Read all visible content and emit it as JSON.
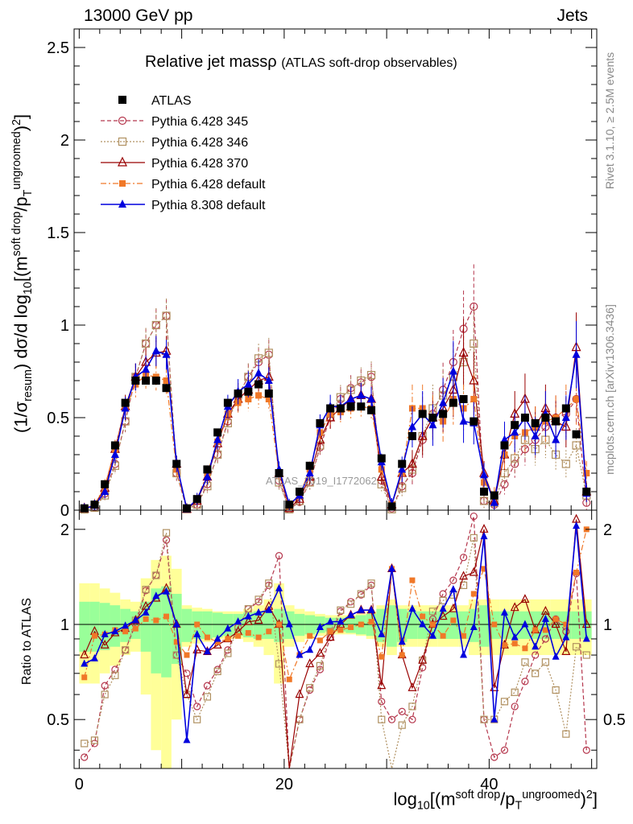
{
  "header": {
    "left": "13000 GeV pp",
    "right": "Jets"
  },
  "title": {
    "main": "Relative jet massρ",
    "sub": "(ATLAS soft-drop observables)"
  },
  "side_text": {
    "rivet": "Rivet 3.1.10, ≥ 2.5M events",
    "mcplots": "mcplots.cern.ch [arXiv:1306.3436]"
  },
  "watermark": "ATLAS_2019_I1772062",
  "labels": {
    "ylabel_main": "(1/σresum) dσ/d log10[(msoft drop/pTungroomed)2]",
    "ylabel_ratio": "Ratio to ATLAS",
    "xlabel": "log10[(msoft drop/pTungroomed)2]"
  },
  "colors": {
    "data": "#000000",
    "p345": "#b5374d",
    "p346": "#b09060",
    "p370": "#990000",
    "pdef": "#f07828",
    "p8": "#0000dd",
    "band_outer": "#ffff99",
    "band_inner": "#99ff99"
  },
  "chart_data": {
    "type": "scatter",
    "xlabel": "log10[(msoft drop/pTungroomed)2]",
    "ylabel": "(1/σresum) dσ/d log10[(msoft drop/pTungroomed)2]",
    "ylabel_ratio": "Ratio to ATLAS",
    "xlim": [
      -0.5,
      50.5
    ],
    "ylim": [
      0,
      2.6
    ],
    "ylim_ratio": [
      0.35,
      2.3
    ],
    "xticks": [
      0,
      20,
      40
    ],
    "yticks": [
      0,
      0.5,
      1,
      1.5,
      2,
      2.5
    ],
    "yticks_ratio": [
      0.5,
      1,
      2
    ],
    "legend_position": "top-left",
    "x": [
      0.5,
      1.5,
      2.5,
      3.5,
      4.5,
      5.5,
      6.5,
      7.5,
      8.5,
      9.5,
      10.5,
      11.5,
      12.5,
      13.5,
      14.5,
      15.5,
      16.5,
      17.5,
      18.5,
      19.5,
      20.5,
      21.5,
      22.5,
      23.5,
      24.5,
      25.5,
      26.5,
      27.5,
      28.5,
      29.5,
      30.5,
      31.5,
      32.5,
      33.5,
      34.5,
      35.5,
      36.5,
      37.5,
      38.5,
      39.5,
      40.5,
      41.5,
      42.5,
      43.5,
      44.5,
      45.5,
      46.5,
      47.5,
      48.5,
      49.5
    ],
    "series": [
      {
        "name": "ATLAS",
        "marker": "square",
        "values": [
          0.01,
          0.03,
          0.14,
          0.35,
          0.58,
          0.7,
          0.7,
          0.7,
          0.66,
          0.25,
          0.01,
          0.06,
          0.22,
          0.42,
          0.58,
          0.63,
          0.64,
          0.68,
          0.63,
          0.2,
          0.03,
          0.1,
          0.24,
          0.47,
          0.55,
          0.55,
          0.56,
          0.56,
          0.54,
          0.28,
          0.02,
          0.25,
          0.4,
          0.52,
          0.5,
          0.52,
          0.58,
          0.6,
          0.48,
          0.1,
          0.08,
          0.35,
          0.46,
          0.5,
          0.47,
          0.5,
          0.48,
          0.55,
          0.41,
          0.1
        ],
        "ratio": [
          1,
          1,
          1,
          1,
          1,
          1,
          1,
          1,
          1,
          1,
          1,
          1,
          1,
          1,
          1,
          1,
          1,
          1,
          1,
          1,
          1,
          1,
          1,
          1,
          1,
          1,
          1,
          1,
          1,
          1,
          1,
          1,
          1,
          1,
          1,
          1,
          1,
          1,
          1,
          1,
          1,
          1,
          1,
          1,
          1,
          1,
          1,
          1,
          1,
          1
        ]
      },
      {
        "name": "Pythia 6.428 345",
        "marker": "open-circle",
        "values": [
          0.004,
          0.015,
          0.09,
          0.25,
          0.48,
          0.72,
          0.9,
          1.0,
          1.05,
          0.2,
          0.007,
          0.03,
          0.14,
          0.3,
          0.48,
          0.62,
          0.72,
          0.8,
          0.84,
          0.16,
          0.005,
          0.045,
          0.15,
          0.34,
          0.5,
          0.6,
          0.66,
          0.69,
          0.72,
          0.16,
          0.01,
          0.13,
          0.2,
          0.38,
          0.52,
          0.65,
          0.8,
          0.98,
          1.1,
          0.05,
          0.03,
          0.14,
          0.25,
          0.33,
          0.38,
          0.45,
          0.5,
          0.52,
          0.6,
          0.04
        ],
        "ratio": [
          0.38,
          0.42,
          0.64,
          0.72,
          0.83,
          1.0,
          1.28,
          1.43,
          1.85,
          0.8,
          0.7,
          0.55,
          0.64,
          0.72,
          0.83,
          0.98,
          1.12,
          1.18,
          1.33,
          1.65,
          0.17,
          0.5,
          0.62,
          0.72,
          0.91,
          1.1,
          1.18,
          1.24,
          1.33,
          0.57,
          0.5,
          0.53,
          0.5,
          0.73,
          1.04,
          1.25,
          1.38,
          1.63,
          2.2,
          0.5,
          0.38,
          0.4,
          0.55,
          0.66,
          0.8,
          0.9,
          1.04,
          0.95,
          1.45,
          0.4
        ]
      },
      {
        "name": "Pythia 6.428 346",
        "marker": "open-square",
        "values": [
          0.004,
          0.013,
          0.08,
          0.24,
          0.48,
          0.72,
          0.9,
          1.0,
          1.05,
          0.2,
          0.006,
          0.03,
          0.13,
          0.3,
          0.47,
          0.62,
          0.72,
          0.82,
          0.85,
          0.15,
          0.005,
          0.05,
          0.15,
          0.35,
          0.52,
          0.61,
          0.65,
          0.7,
          0.73,
          0.14,
          0.005,
          0.12,
          0.22,
          0.4,
          0.55,
          0.62,
          0.72,
          0.8,
          0.9,
          0.05,
          0.04,
          0.2,
          0.28,
          0.38,
          0.33,
          0.38,
          0.3,
          0.25,
          0.35,
          0.08
        ],
        "ratio": [
          0.42,
          0.43,
          0.6,
          0.69,
          0.83,
          1.03,
          1.29,
          1.43,
          1.95,
          0.8,
          0.6,
          0.5,
          0.59,
          0.71,
          0.81,
          0.98,
          1.12,
          1.2,
          1.35,
          0.75,
          0.25,
          0.5,
          0.63,
          0.74,
          0.95,
          1.11,
          1.16,
          1.25,
          1.35,
          0.5,
          0.25,
          0.48,
          0.55,
          0.77,
          1.1,
          1.19,
          1.24,
          1.33,
          1.88,
          0.5,
          0.5,
          0.57,
          0.61,
          0.76,
          0.7,
          0.76,
          0.62,
          0.45,
          0.85,
          0.8
        ]
      },
      {
        "name": "Pythia 6.428 370",
        "marker": "open-triangle",
        "values": [
          0.008,
          0.028,
          0.12,
          0.33,
          0.56,
          0.72,
          0.8,
          0.85,
          0.86,
          0.25,
          0.006,
          0.05,
          0.18,
          0.36,
          0.52,
          0.6,
          0.65,
          0.7,
          0.72,
          0.2,
          0.01,
          0.06,
          0.18,
          0.38,
          0.5,
          0.55,
          0.6,
          0.62,
          0.6,
          0.18,
          0.03,
          0.2,
          0.25,
          0.4,
          0.5,
          0.55,
          0.65,
          0.85,
          0.7,
          0.2,
          0.05,
          0.3,
          0.52,
          0.6,
          0.45,
          0.55,
          0.48,
          0.45,
          0.88,
          0.1
        ],
        "ratio": [
          0.8,
          0.95,
          0.86,
          0.94,
          0.97,
          1.03,
          1.14,
          1.21,
          1.3,
          1.0,
          0.6,
          0.83,
          0.82,
          0.86,
          0.9,
          0.95,
          1.02,
          1.03,
          1.14,
          1.0,
          0.33,
          0.6,
          0.75,
          0.81,
          0.91,
          1.0,
          1.07,
          1.11,
          1.11,
          0.64,
          1.5,
          0.8,
          0.63,
          0.77,
          1.0,
          1.06,
          1.12,
          1.42,
          1.46,
          2.0,
          0.63,
          0.86,
          1.13,
          1.2,
          0.96,
          1.1,
          1.0,
          0.82,
          2.15,
          1.0
        ]
      },
      {
        "name": "Pythia 6.428 default",
        "marker": "filled-square",
        "values": [
          0.01,
          0.03,
          0.13,
          0.33,
          0.55,
          0.68,
          0.73,
          0.72,
          0.7,
          0.22,
          0.008,
          0.06,
          0.2,
          0.37,
          0.52,
          0.58,
          0.6,
          0.62,
          0.6,
          0.2,
          0.02,
          0.08,
          0.22,
          0.42,
          0.52,
          0.53,
          0.55,
          0.56,
          0.55,
          0.22,
          0.03,
          0.2,
          0.55,
          0.55,
          0.5,
          0.48,
          0.6,
          0.55,
          0.6,
          0.15,
          0.08,
          0.3,
          0.4,
          0.42,
          0.45,
          0.48,
          0.5,
          0.55,
          0.6,
          0.2
        ],
        "ratio": [
          0.68,
          0.92,
          0.93,
          0.96,
          0.95,
          0.97,
          1.04,
          1.03,
          1.06,
          0.88,
          0.8,
          1.0,
          0.91,
          0.88,
          0.9,
          0.92,
          0.94,
          0.91,
          0.95,
          1.0,
          0.67,
          0.8,
          0.92,
          0.89,
          0.95,
          0.96,
          0.98,
          1.0,
          1.02,
          0.79,
          1.5,
          0.8,
          1.38,
          1.06,
          1.0,
          0.92,
          1.03,
          0.92,
          1.25,
          1.5,
          1.0,
          0.86,
          0.87,
          0.84,
          0.96,
          0.96,
          1.04,
          1.0,
          1.46,
          2.0
        ]
      },
      {
        "name": "Pythia 8.308 default",
        "marker": "filled-triangle",
        "values": [
          0.008,
          0.025,
          0.1,
          0.3,
          0.55,
          0.72,
          0.76,
          0.86,
          0.84,
          0.25,
          0.005,
          0.06,
          0.18,
          0.38,
          0.56,
          0.64,
          0.68,
          0.74,
          0.7,
          0.22,
          0.03,
          0.08,
          0.2,
          0.46,
          0.56,
          0.56,
          0.6,
          0.62,
          0.6,
          0.26,
          0.03,
          0.22,
          0.45,
          0.52,
          0.46,
          0.58,
          0.75,
          0.48,
          0.47,
          0.19,
          0.04,
          0.38,
          0.42,
          0.5,
          0.4,
          0.52,
          0.38,
          0.5,
          0.84,
          0.09
        ],
        "ratio": [
          0.75,
          0.78,
          0.93,
          0.95,
          0.99,
          1.03,
          1.09,
          1.23,
          1.27,
          1.0,
          0.43,
          0.93,
          0.82,
          0.9,
          0.97,
          1.02,
          1.06,
          1.09,
          1.11,
          1.3,
          1.0,
          0.8,
          0.83,
          0.98,
          1.02,
          1.02,
          1.07,
          1.11,
          1.11,
          0.93,
          1.5,
          0.88,
          1.12,
          1.0,
          0.92,
          1.12,
          1.29,
          0.8,
          0.98,
          1.9,
          0.5,
          1.09,
          0.91,
          1.0,
          0.85,
          1.04,
          0.79,
          0.91,
          2.05,
          0.9
        ]
      }
    ],
    "band_inner": [
      0.18,
      0.18,
      0.17,
      0.15,
      0.12,
      0.1,
      0.18,
      0.3,
      0.32,
      0.25,
      0.12,
      0.1,
      0.1,
      0.09,
      0.08,
      0.08,
      0.09,
      0.1,
      0.1,
      0.12,
      0.1,
      0.08,
      0.07,
      0.06,
      0.05,
      0.05,
      0.06,
      0.07,
      0.08,
      0.12,
      0.15,
      0.12,
      0.1,
      0.1,
      0.1,
      0.1,
      0.1,
      0.1,
      0.12,
      0.15,
      0.1,
      0.1,
      0.1,
      0.1,
      0.1,
      0.1,
      0.1,
      0.1,
      0.1,
      0.1
    ],
    "band_outer": [
      0.35,
      0.35,
      0.3,
      0.26,
      0.2,
      0.18,
      0.4,
      0.6,
      0.65,
      0.5,
      0.15,
      0.13,
      0.12,
      0.1,
      0.1,
      0.1,
      0.12,
      0.15,
      0.2,
      0.35,
      0.15,
      0.12,
      0.1,
      0.08,
      0.07,
      0.07,
      0.07,
      0.08,
      0.1,
      0.15,
      0.2,
      0.15,
      0.15,
      0.15,
      0.15,
      0.15,
      0.15,
      0.15,
      0.2,
      0.2,
      0.2,
      0.2,
      0.2,
      0.2,
      0.2,
      0.2,
      0.2,
      0.2,
      0.2,
      0.2
    ]
  }
}
